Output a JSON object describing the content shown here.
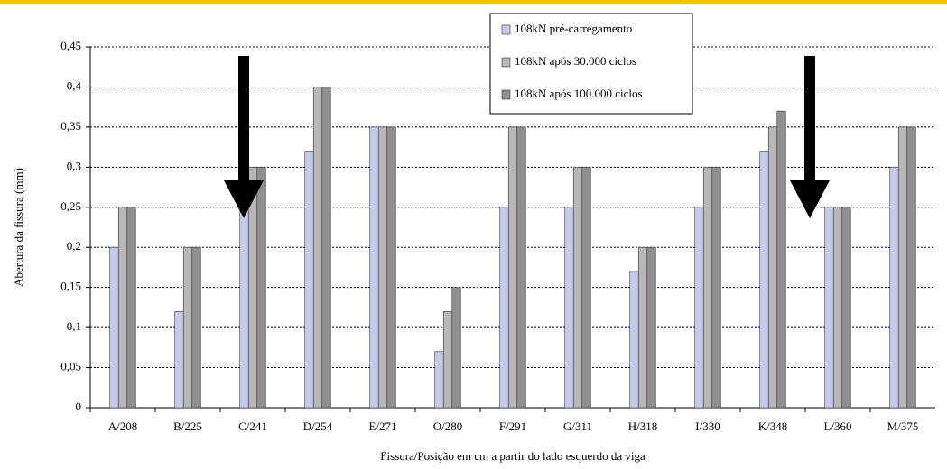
{
  "chart_data": {
    "type": "bar",
    "categories": [
      "A/208",
      "B/225",
      "C/241",
      "D/254",
      "E/271",
      "O/280",
      "F/291",
      "G/311",
      "H/318",
      "I/330",
      "K/348",
      "L/360",
      "M/375"
    ],
    "series": [
      {
        "name": "108kN pré-carregamento",
        "color": "#c9c9ea",
        "values": [
          0.2,
          0.12,
          0.25,
          0.32,
          0.35,
          0.07,
          0.25,
          0.25,
          0.17,
          0.25,
          0.32,
          0.25,
          0.3
        ]
      },
      {
        "name": "108kN após 30.000 ciclos",
        "color": "#b8b8b8",
        "values": [
          0.25,
          0.2,
          0.3,
          0.4,
          0.35,
          0.12,
          0.35,
          0.3,
          0.2,
          0.3,
          0.35,
          0.25,
          0.35
        ]
      },
      {
        "name": "108kN após 100.000 ciclos",
        "color": "#8f8f8f",
        "values": [
          0.25,
          0.2,
          0.3,
          0.4,
          0.35,
          0.15,
          0.35,
          0.3,
          0.2,
          0.3,
          0.37,
          0.25,
          0.35
        ]
      }
    ],
    "ylim": [
      0,
      0.45
    ],
    "yticks": [
      0,
      {
        "value": 0.05,
        "label": "0,05"
      },
      {
        "value": 0.1,
        "label": "0,1"
      },
      {
        "value": 0.15,
        "label": "0,15"
      },
      {
        "value": 0.2,
        "label": "0,2"
      },
      {
        "value": 0.25,
        "label": "0,25"
      },
      {
        "value": 0.3,
        "label": "0,3"
      },
      {
        "value": 0.35,
        "label": "0,35"
      },
      {
        "value": 0.4,
        "label": "0,4"
      },
      {
        "value": 0.45,
        "label": "0,45"
      }
    ],
    "grid": true,
    "ylabel": "Abertura da fissura (mm)",
    "xlabel": "Fissura/Posição em cm a partir do lado esquerdo da viga"
  }
}
